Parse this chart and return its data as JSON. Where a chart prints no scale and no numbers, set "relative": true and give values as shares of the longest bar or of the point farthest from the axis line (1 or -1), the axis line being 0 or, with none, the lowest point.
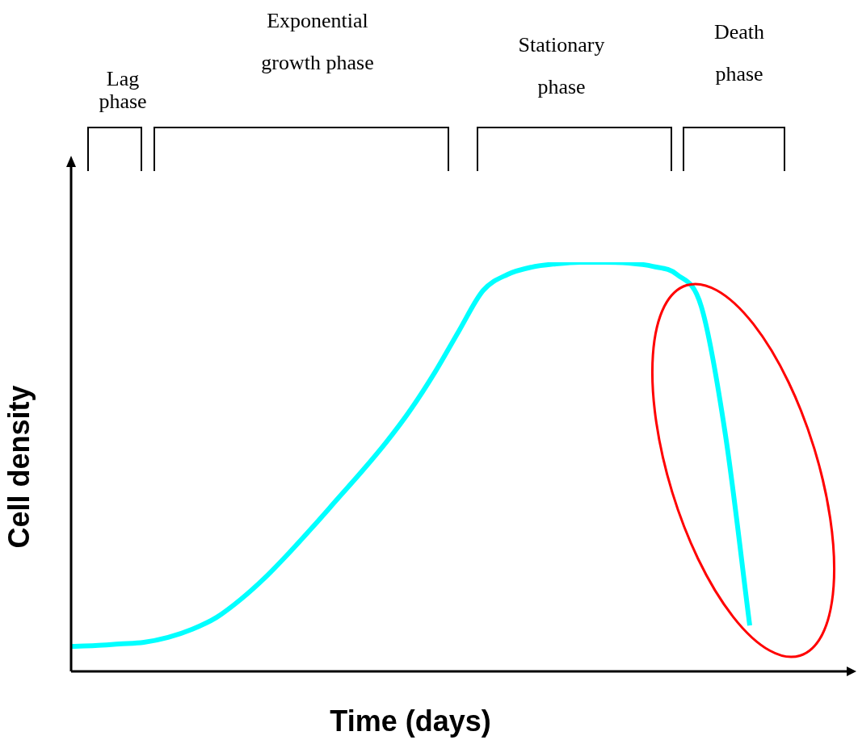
{
  "chart_data": {
    "type": "line",
    "xlabel": "Time (days)",
    "ylabel": "Cell density",
    "relative": true,
    "categories": [
      null,
      null,
      null,
      null,
      null,
      null,
      null,
      null,
      null,
      null,
      null,
      null,
      null,
      null,
      null,
      null,
      null,
      null,
      null,
      null,
      null,
      null,
      null,
      null,
      null,
      null,
      null,
      null,
      null
    ],
    "series": [
      {
        "color": "#00ffff",
        "values": [
          0.061,
          0.063,
          0.067,
          0.071,
          0.083,
          0.103,
          0.132,
          0.176,
          0.229,
          0.29,
          0.355,
          0.422,
          0.489,
          0.56,
          0.639,
          0.73,
          0.832,
          0.931,
          0.97,
          0.988,
          0.996,
          1,
          1,
          0.998,
          0.99,
          0.97,
          0.892,
          0.577,
          0.112
        ]
      }
    ],
    "annotations": [
      "Lag phase",
      "Exponential growth phase",
      "Stationary phase",
      "Death phase"
    ]
  }
}
